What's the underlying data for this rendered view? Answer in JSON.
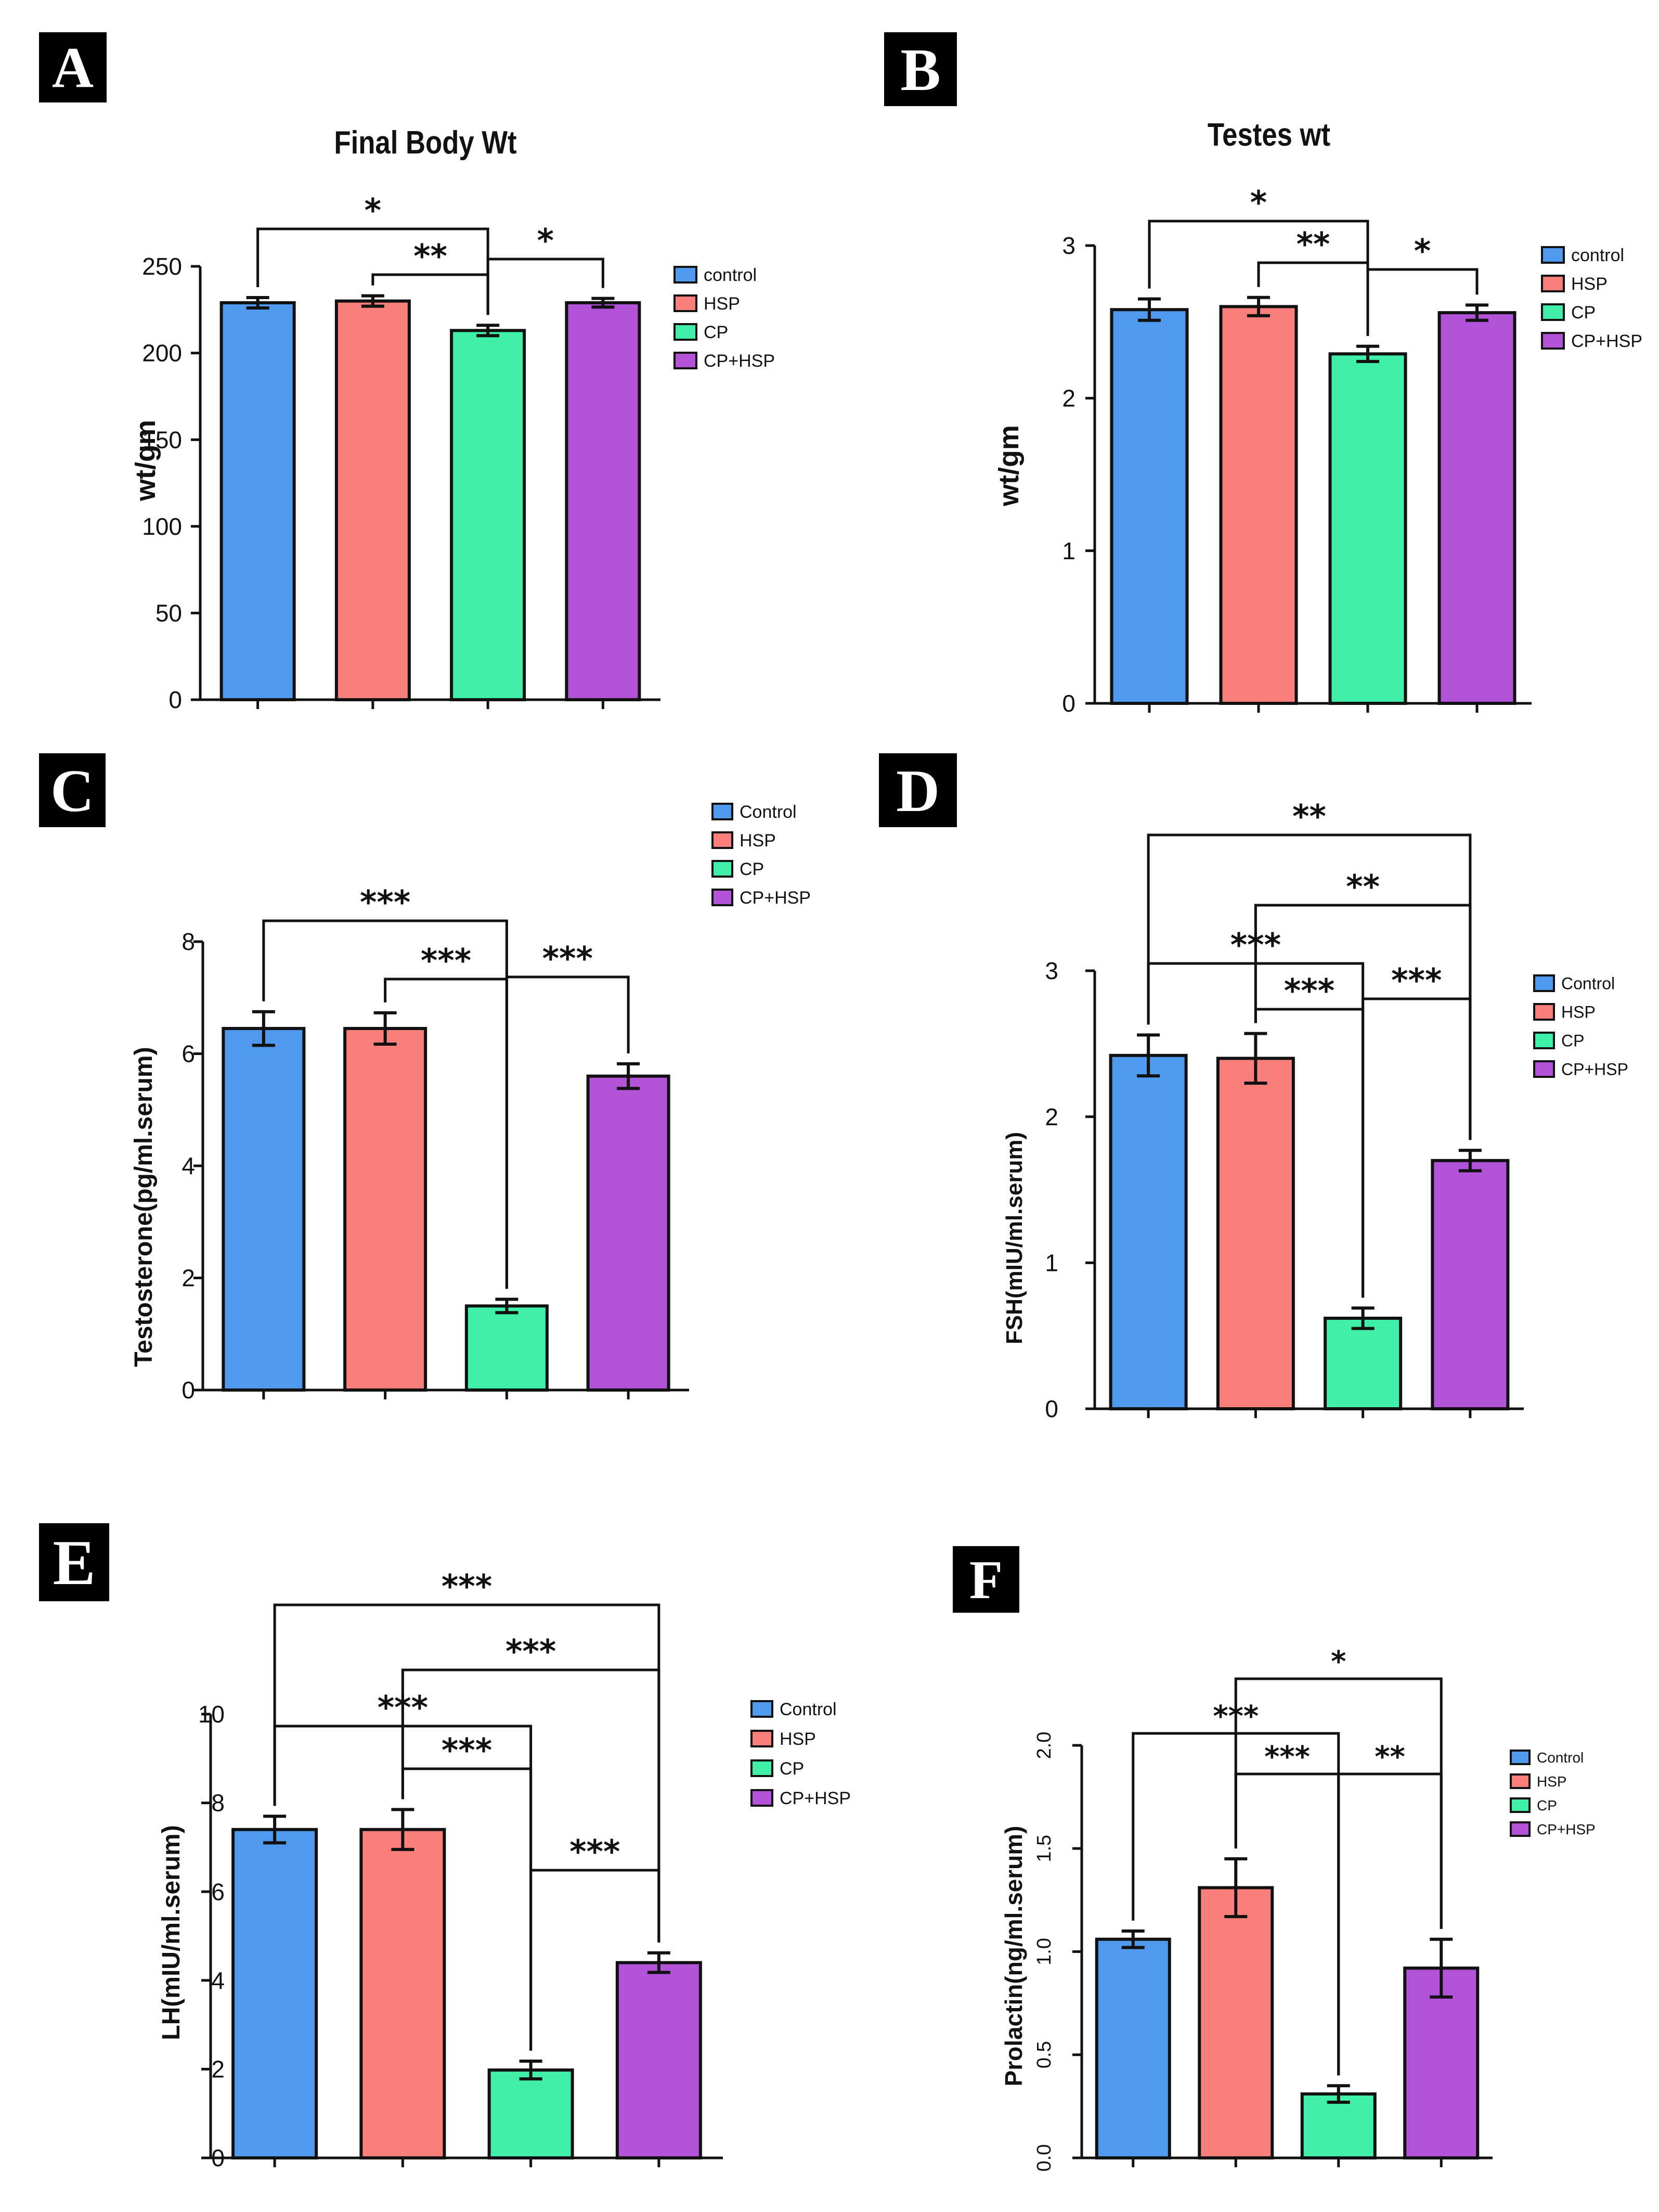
{
  "colors": [
    "#4f9aee",
    "#f87f7c",
    "#40efa8",
    "#b152d8"
  ],
  "chart_data": [
    {
      "panel": "A",
      "type": "bar",
      "title": "Final Body Wt",
      "xlabel": "",
      "ylabel": "wt/gm",
      "categories": [
        "control",
        "HSP",
        "CP",
        "CP+HSP"
      ],
      "values": [
        229,
        230,
        213,
        229
      ],
      "errors": [
        3,
        3,
        3,
        2.5
      ],
      "ylim": [
        0,
        250
      ],
      "yticks": [
        "0",
        "50",
        "100",
        "150",
        "200",
        "250"
      ],
      "legend": [
        "control",
        "HSP",
        "CP",
        "CP+HSP"
      ],
      "legend_position": "right",
      "significance": [
        {
          "from": 0,
          "to": 2,
          "label": "*"
        },
        {
          "from": 1,
          "to": 2,
          "label": "**"
        },
        {
          "from": 2,
          "to": 3,
          "label": "*"
        }
      ]
    },
    {
      "panel": "B",
      "type": "bar",
      "title": "Testes wt",
      "xlabel": "",
      "ylabel": "wt/gm",
      "categories": [
        "control",
        "HSP",
        "CP",
        "CP+HSP"
      ],
      "values": [
        2.58,
        2.6,
        2.29,
        2.56
      ],
      "errors": [
        0.07,
        0.06,
        0.05,
        0.05
      ],
      "ylim": [
        0,
        3
      ],
      "yticks": [
        "0",
        "1",
        "2",
        "3"
      ],
      "legend": [
        "control",
        "HSP",
        "CP",
        "CP+HSP"
      ],
      "legend_position": "right",
      "significance": [
        {
          "from": 0,
          "to": 2,
          "label": "*"
        },
        {
          "from": 1,
          "to": 2,
          "label": "**"
        },
        {
          "from": 2,
          "to": 3,
          "label": "*"
        }
      ]
    },
    {
      "panel": "C",
      "type": "bar",
      "title": "",
      "xlabel": "",
      "ylabel": "Testosterone(pg/ml.serum)",
      "categories": [
        "Control",
        "HSP",
        "CP",
        "CP+HSP"
      ],
      "values": [
        6.45,
        6.45,
        1.5,
        5.6
      ],
      "errors": [
        0.3,
        0.28,
        0.12,
        0.22
      ],
      "ylim": [
        0,
        8
      ],
      "yticks": [
        "0",
        "2",
        "4",
        "6",
        "8"
      ],
      "legend": [
        "Control",
        "HSP",
        "CP",
        "CP+HSP"
      ],
      "legend_position": "top-right",
      "significance": [
        {
          "from": 0,
          "to": 2,
          "label": "***"
        },
        {
          "from": 1,
          "to": 2,
          "label": "***"
        },
        {
          "from": 2,
          "to": 3,
          "label": "***"
        }
      ]
    },
    {
      "panel": "D",
      "type": "bar",
      "title": "",
      "xlabel": "",
      "ylabel": "FSH(mIU/ml.serum)",
      "categories": [
        "Control",
        "HSP",
        "CP",
        "CP+HSP"
      ],
      "values": [
        2.42,
        2.4,
        0.62,
        1.7
      ],
      "errors": [
        0.14,
        0.17,
        0.07,
        0.07
      ],
      "ylim": [
        0,
        3
      ],
      "yticks": [
        "0",
        "1",
        "2",
        "3"
      ],
      "legend": [
        "Control",
        "HSP",
        "CP",
        "CP+HSP"
      ],
      "legend_position": "right",
      "significance": [
        {
          "from": 0,
          "to": 3,
          "label": "**"
        },
        {
          "from": 1,
          "to": 3,
          "label": "**"
        },
        {
          "from": 0,
          "to": 2,
          "label": "***"
        },
        {
          "from": 1,
          "to": 2,
          "label": "***"
        },
        {
          "from": 2,
          "to": 3,
          "label": "***"
        }
      ]
    },
    {
      "panel": "E",
      "type": "bar",
      "title": "",
      "xlabel": "",
      "ylabel": "LH(mIU/ml.serum)",
      "categories": [
        "Control",
        "HSP",
        "CP",
        "CP+HSP"
      ],
      "values": [
        7.4,
        7.4,
        1.98,
        4.4
      ],
      "errors": [
        0.3,
        0.45,
        0.2,
        0.22
      ],
      "ylim": [
        0,
        10
      ],
      "yticks": [
        "0",
        "2",
        "4",
        "6",
        "8",
        "10"
      ],
      "legend": [
        "Control",
        "HSP",
        "CP",
        "CP+HSP"
      ],
      "legend_position": "right",
      "significance": [
        {
          "from": 0,
          "to": 3,
          "label": "***"
        },
        {
          "from": 1,
          "to": 3,
          "label": "***"
        },
        {
          "from": 0,
          "to": 2,
          "label": "***"
        },
        {
          "from": 1,
          "to": 2,
          "label": "***"
        },
        {
          "from": 2,
          "to": 3,
          "label": "***"
        }
      ]
    },
    {
      "panel": "F",
      "type": "bar",
      "title": "",
      "xlabel": "",
      "ylabel": "Prolactin(ng/ml.serum)",
      "categories": [
        "Control",
        "HSP",
        "CP",
        "CP+HSP"
      ],
      "values": [
        1.06,
        1.31,
        0.31,
        0.92
      ],
      "errors": [
        0.04,
        0.14,
        0.04,
        0.14
      ],
      "ylim": [
        0,
        2
      ],
      "yticks": [
        "0.0",
        "0.5",
        "1.0",
        "1.5",
        "2.0"
      ],
      "legend": [
        "Control",
        "HSP",
        "CP",
        "CP+HSP"
      ],
      "legend_position": "right",
      "significance": [
        {
          "from": 1,
          "to": 3,
          "label": "*"
        },
        {
          "from": 0,
          "to": 2,
          "label": "***"
        },
        {
          "from": 1,
          "to": 2,
          "label": "***"
        },
        {
          "from": 2,
          "to": 3,
          "label": "**"
        }
      ]
    }
  ]
}
